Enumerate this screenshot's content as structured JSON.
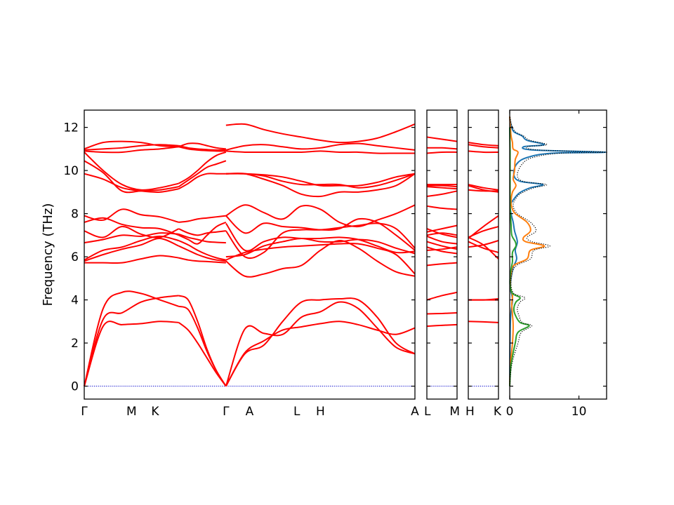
{
  "chart_data": {
    "type": "line",
    "ylabel": "Frequency (THz)",
    "ylim": [
      -0.6,
      12.8
    ],
    "yticks": [
      0,
      2,
      4,
      6,
      8,
      10,
      12
    ],
    "grid": false,
    "band_color": "#ff0000",
    "zero_line_color": "#0000cc",
    "panels": [
      {
        "id": "p1",
        "labels": [
          "Γ",
          "M",
          "K",
          "Γ",
          "A",
          "L",
          "H",
          "A"
        ],
        "segments": [
          {
            "from": 0,
            "to": 2.0,
            "bands": [
              [
                0.0,
                2.78,
                2.85,
                2.9,
                3.0,
                2.95
              ],
              [
                0.0,
                3.1,
                3.4,
                3.9,
                4.1,
                4.2
              ],
              [
                0.0,
                3.6,
                4.35,
                4.3,
                4.0,
                3.7
              ],
              [
                5.72,
                5.72,
                5.72,
                5.9,
                6.05,
                5.95
              ],
              [
                5.8,
                6.1,
                6.35,
                6.55,
                6.85,
                6.5
              ],
              [
                5.85,
                6.3,
                6.45,
                6.75,
                6.95,
                6.75
              ],
              [
                6.65,
                6.8,
                7.0,
                6.95,
                7.1,
                7.05
              ],
              [
                7.2,
                6.9,
                7.4,
                7.05,
                6.9,
                7.3
              ],
              [
                7.6,
                7.8,
                7.5,
                7.35,
                7.3,
                7.0
              ],
              [
                7.9,
                7.7,
                8.2,
                7.95,
                7.85,
                7.6
              ],
              [
                9.85,
                9.6,
                9.2,
                9.05,
                9.0,
                9.15
              ],
              [
                10.45,
                9.9,
                9.05,
                9.05,
                9.1,
                9.25
              ],
              [
                10.85,
                10.0,
                9.35,
                9.1,
                9.2,
                9.4
              ],
              [
                10.9,
                10.85,
                10.85,
                10.95,
                11.0,
                11.1
              ],
              [
                10.95,
                11.0,
                11.05,
                11.15,
                11.2,
                11.15
              ],
              [
                11.0,
                11.3,
                11.35,
                11.3,
                11.15,
                11.1
              ]
            ]
          },
          {
            "from": 2.0,
            "to": 3.0,
            "bands": [
              [
                2.95,
                2.6,
                2.0,
                1.3,
                0.6,
                0.0
              ],
              [
                4.2,
                4.0,
                3.0,
                1.7,
                0.7,
                0.0
              ],
              [
                3.7,
                3.55,
                2.7,
                1.6,
                0.7,
                0.0
              ],
              [
                5.95,
                5.85,
                5.8,
                5.78,
                5.75,
                5.72
              ],
              [
                6.5,
                6.3,
                6.1,
                5.95,
                5.85,
                5.8
              ],
              [
                6.75,
                6.55,
                6.3,
                6.1,
                5.95,
                5.85
              ],
              [
                7.05,
                6.9,
                6.8,
                6.7,
                6.67,
                6.65
              ],
              [
                7.3,
                7.1,
                7.0,
                7.1,
                7.15,
                7.2
              ],
              [
                7.0,
                6.8,
                6.6,
                7.0,
                7.4,
                7.6
              ],
              [
                7.6,
                7.65,
                7.75,
                7.8,
                7.85,
                7.9
              ],
              [
                9.15,
                9.4,
                9.7,
                9.85,
                9.85,
                9.85
              ],
              [
                9.25,
                9.55,
                9.85,
                10.15,
                10.3,
                10.45
              ],
              [
                9.4,
                9.65,
                10.0,
                10.4,
                10.7,
                10.85
              ],
              [
                11.1,
                11.0,
                10.95,
                10.92,
                10.9,
                10.9
              ],
              [
                11.15,
                11.05,
                11.0,
                10.97,
                10.95,
                10.95
              ],
              [
                11.1,
                11.25,
                11.25,
                11.15,
                11.05,
                11.0
              ]
            ]
          },
          {
            "from": 3.0,
            "to": 7.0,
            "bands": [
              [
                0.0,
                1.55,
                2.1,
                2.6,
                2.75,
                2.9,
                3.0,
                2.85,
                2.6,
                2.4,
                2.7
              ],
              [
                0.0,
                2.65,
                2.45,
                2.4,
                3.2,
                3.45,
                3.9,
                3.6,
                2.7,
                1.8,
                1.5
              ],
              [
                0.0,
                1.5,
                1.9,
                3.0,
                3.9,
                4.0,
                4.05,
                4.0,
                3.2,
                2.0,
                1.5
              ],
              [
                5.8,
                5.1,
                5.2,
                5.45,
                5.6,
                6.3,
                6.75,
                6.4,
                5.8,
                5.3,
                5.1
              ],
              [
                5.85,
                6.2,
                6.35,
                6.45,
                6.5,
                6.55,
                6.6,
                6.6,
                6.4,
                6.1,
                5.2
              ],
              [
                6.0,
                6.1,
                6.5,
                6.7,
                6.85,
                6.7,
                6.7,
                6.8,
                6.7,
                6.4,
                6.15
              ],
              [
                7.55,
                6.3,
                6.7,
                6.9,
                6.85,
                6.85,
                6.9,
                6.8,
                6.5,
                6.2,
                6.25
              ],
              [
                7.2,
                6.0,
                6.2,
                7.1,
                7.25,
                7.25,
                7.35,
                7.45,
                7.55,
                7.3,
                6.4
              ],
              [
                7.9,
                7.1,
                7.55,
                7.4,
                7.35,
                7.25,
                7.3,
                7.75,
                7.6,
                7.0,
                6.3
              ],
              [
                7.9,
                8.4,
                8.05,
                7.75,
                8.35,
                8.2,
                7.6,
                7.4,
                7.7,
                8.0,
                8.4
              ],
              [
                9.85,
                9.85,
                9.8,
                9.7,
                9.5,
                9.3,
                9.3,
                9.3,
                9.45,
                9.7,
                9.85
              ],
              [
                9.85,
                9.85,
                9.75,
                9.5,
                9.35,
                9.35,
                9.35,
                9.2,
                9.3,
                9.55,
                9.85
              ],
              [
                9.85,
                9.85,
                9.6,
                9.3,
                8.9,
                8.8,
                9.0,
                9.0,
                9.1,
                9.3,
                9.85
              ],
              [
                10.9,
                10.85,
                10.85,
                10.85,
                10.85,
                10.9,
                10.85,
                10.85,
                10.8,
                10.8,
                10.8
              ],
              [
                10.95,
                11.15,
                11.2,
                11.1,
                11.0,
                11.05,
                11.2,
                11.25,
                11.15,
                11.05,
                10.95
              ],
              [
                12.1,
                12.15,
                11.9,
                11.7,
                11.55,
                11.4,
                11.3,
                11.35,
                11.5,
                11.8,
                12.15
              ]
            ]
          }
        ]
      },
      {
        "id": "p2",
        "labels": [
          "L",
          "M"
        ],
        "segments": [
          {
            "from": 0,
            "to": 1.0,
            "bands": [
              [
                2.78,
                2.82,
                2.85
              ],
              [
                3.35,
                3.37,
                3.4
              ],
              [
                4.0,
                4.2,
                4.35
              ],
              [
                5.6,
                5.67,
                5.72
              ],
              [
                6.3,
                6.35,
                6.45
              ],
              [
                6.45,
                6.25,
                6.15
              ],
              [
                6.7,
                6.5,
                6.35
              ],
              [
                6.95,
                6.7,
                6.6
              ],
              [
                7.0,
                7.1,
                7.0
              ],
              [
                7.15,
                7.3,
                7.45
              ],
              [
                7.3,
                7.05,
                6.9
              ],
              [
                8.35,
                8.25,
                8.2
              ],
              [
                8.8,
                8.9,
                9.05
              ],
              [
                9.25,
                9.2,
                9.15
              ],
              [
                9.3,
                9.3,
                9.25
              ],
              [
                9.35,
                9.35,
                9.35
              ],
              [
                10.8,
                10.85,
                10.85
              ],
              [
                11.05,
                11.05,
                11.0
              ],
              [
                11.55,
                11.45,
                11.35
              ]
            ]
          }
        ]
      },
      {
        "id": "p3",
        "labels": [
          "H",
          "K"
        ],
        "segments": [
          {
            "from": 0,
            "to": 1.0,
            "bands": [
              [
                3.0,
                2.98,
                2.95
              ],
              [
                4.0,
                4.0,
                4.0
              ],
              [
                4.0,
                4.0,
                4.05
              ],
              [
                6.45,
                6.55,
                6.75
              ],
              [
                6.7,
                6.4,
                6.2
              ],
              [
                6.9,
                6.55,
                5.9
              ],
              [
                6.9,
                7.2,
                7.4
              ],
              [
                6.85,
                7.4,
                7.9
              ],
              [
                9.1,
                9.05,
                9.05
              ],
              [
                9.3,
                9.1,
                9.0
              ],
              [
                9.35,
                9.2,
                9.1
              ],
              [
                10.9,
                10.85,
                10.85
              ],
              [
                11.2,
                11.1,
                11.05
              ],
              [
                11.3,
                11.2,
                11.15
              ]
            ]
          }
        ]
      }
    ],
    "dos": {
      "xlim": [
        0,
        14
      ],
      "xticks": [
        0,
        10
      ],
      "series": [
        {
          "color": "#1f77b4",
          "style": "solid",
          "y": [
            0,
            3.0,
            4.0,
            4.5,
            5.0,
            5.5,
            5.9,
            6.3,
            6.7,
            7.2,
            7.6,
            8.0,
            8.4,
            8.8,
            9.0,
            9.2,
            9.35,
            9.5,
            9.8,
            10.3,
            10.6,
            10.8,
            10.85,
            10.95,
            11.1,
            11.2,
            11.4,
            11.6,
            11.8,
            12.1,
            12.5
          ],
          "x": [
            0,
            0.1,
            0.4,
            0.1,
            0.2,
            0.5,
            1.0,
            0.8,
            1.1,
            0.7,
            0.5,
            0.2,
            0.1,
            0.9,
            1.6,
            3.0,
            4.8,
            1.5,
            0.6,
            1.0,
            2.5,
            6.0,
            13.8,
            3.5,
            2.0,
            5.0,
            2.5,
            1.8,
            0.6,
            0.2,
            0
          ]
        },
        {
          "color": "#ff7f0e",
          "style": "solid",
          "y": [
            0,
            1.0,
            2.0,
            2.8,
            3.3,
            3.8,
            4.2,
            4.6,
            5.2,
            5.6,
            5.9,
            6.3,
            6.5,
            6.7,
            6.9,
            7.2,
            7.6,
            8.0,
            8.3,
            8.6,
            9.0,
            9.3,
            9.6,
            10.0,
            10.5,
            10.85,
            11.0,
            11.3,
            11.6,
            12.0,
            12.5
          ],
          "x": [
            0,
            0.1,
            0.4,
            0.5,
            0.4,
            0.3,
            0.4,
            0.1,
            0.2,
            0.6,
            2.5,
            3.0,
            5.0,
            2.3,
            2.0,
            3.0,
            2.5,
            0.8,
            0.3,
            0.2,
            0.4,
            0.9,
            0.5,
            0.7,
            0.8,
            1.2,
            0.5,
            0.4,
            0.2,
            0.1,
            0
          ]
        },
        {
          "color": "#2ca02c",
          "style": "solid",
          "y": [
            0,
            1.0,
            2.0,
            2.5,
            2.8,
            2.95,
            3.3,
            3.6,
            3.9,
            4.1,
            4.3,
            4.7,
            5.2,
            5.6,
            5.8,
            6.2,
            6.5,
            6.7,
            7.0,
            7.5,
            8.0,
            8.5,
            9.5,
            10.5,
            11.0,
            12.0
          ],
          "x": [
            0,
            0.2,
            0.8,
            1.2,
            2.8,
            1.5,
            0.8,
            0.6,
            0.9,
            1.5,
            0.4,
            0.05,
            0.1,
            0.3,
            0.4,
            0.4,
            0.9,
            0.8,
            0.3,
            0.2,
            0.1,
            0.05,
            0.05,
            0.05,
            0.05,
            0
          ]
        },
        {
          "color": "#000000",
          "style": "dotted",
          "y": [
            0,
            1.0,
            2.0,
            2.5,
            2.8,
            2.95,
            3.3,
            3.6,
            3.9,
            4.1,
            4.3,
            4.7,
            5.2,
            5.6,
            5.9,
            6.3,
            6.5,
            6.7,
            6.9,
            7.2,
            7.6,
            8.0,
            8.4,
            8.8,
            9.0,
            9.2,
            9.35,
            9.5,
            9.8,
            10.3,
            10.6,
            10.8,
            10.85,
            10.95,
            11.1,
            11.2,
            11.4,
            11.6,
            11.8,
            12.1,
            12.5
          ],
          "x": [
            0,
            0.3,
            1.2,
            1.7,
            3.2,
            1.8,
            1.3,
            1.1,
            1.5,
            2.2,
            0.6,
            0.2,
            0.3,
            1.0,
            3.0,
            3.5,
            5.8,
            3.2,
            2.5,
            3.8,
            3.0,
            1.1,
            0.5,
            1.1,
            2.0,
            3.5,
            5.3,
            1.9,
            1.1,
            1.8,
            3.3,
            7.2,
            14.0,
            4.2,
            2.5,
            5.4,
            2.9,
            2.0,
            0.8,
            0.3,
            0
          ]
        }
      ]
    }
  }
}
